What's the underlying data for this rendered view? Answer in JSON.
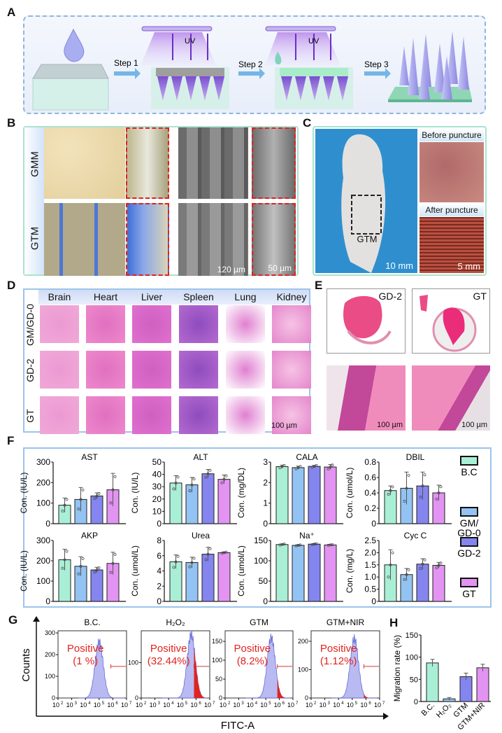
{
  "panels": {
    "a": "A",
    "b": "B",
    "c": "C",
    "d": "D",
    "e": "E",
    "f": "F",
    "g": "G",
    "h": "H"
  },
  "panel_a": {
    "step1": "Step 1",
    "step2": "Step 2",
    "step3": "Step 3",
    "uv": "UV"
  },
  "panel_b": {
    "rows": [
      "GMM",
      "GTM"
    ],
    "scale_sem": "120 µm",
    "scale_inset": "50 µm"
  },
  "panel_c": {
    "mouse_label": "GTM",
    "scale_mouse": "10 mm",
    "before": "Before puncture",
    "after": "After puncture",
    "scale_skin": "5 mm"
  },
  "panel_d": {
    "columns": [
      "Brain",
      "Heart",
      "Liver",
      "Spleen",
      "Lung",
      "Kidney"
    ],
    "rows": [
      "GM/GD-0",
      "GD-2",
      "GT"
    ],
    "scale": "100 µm"
  },
  "panel_e": {
    "labels": [
      "GD-2",
      "GT"
    ],
    "scale": "100 µm"
  },
  "colors": {
    "B.C": "#a9efd6",
    "GM/GD-0": "#93c3f2",
    "GD-2": "#8585ef",
    "GT": "#e393f2",
    "frame_blue": "#9cc4ea",
    "frame_green": "#a8e4cf",
    "positive_red": "#e0241f",
    "histogram_fill": "#b9baf2"
  },
  "legend": [
    "B.C",
    "GM/\nGD-0",
    "GD-2",
    "GT"
  ],
  "chart_data": [
    {
      "type": "bar",
      "panel": "F",
      "title": "AST",
      "ylabel": "Con. (IU/L)",
      "ylim": [
        0,
        300
      ],
      "yticks": [
        "0",
        "100",
        "200",
        "300"
      ],
      "categories": [
        "B.C",
        "GM/GD-0",
        "GD-2",
        "GT"
      ],
      "values": [
        90,
        118,
        135,
        165
      ],
      "errors": [
        35,
        58,
        15,
        80
      ]
    },
    {
      "type": "bar",
      "panel": "F",
      "title": "ALT",
      "ylabel": "Con. (IU/L)",
      "ylim": [
        0,
        50
      ],
      "yticks": [
        "0",
        "10",
        "20",
        "30",
        "40",
        "50"
      ],
      "categories": [
        "B.C",
        "GM/GD-0",
        "GD-2",
        "GT"
      ],
      "values": [
        33,
        31.5,
        40.5,
        36
      ],
      "errors": [
        6,
        6,
        3.5,
        3.5
      ]
    },
    {
      "type": "bar",
      "panel": "F",
      "title": "CALA",
      "ylabel": "Con. (mg/DL)",
      "ylim": [
        0,
        3
      ],
      "yticks": [
        "0",
        "1",
        "2",
        "3"
      ],
      "categories": [
        "B.C",
        "GM/GD-0",
        "GD-2",
        "GT"
      ],
      "values": [
        2.78,
        2.73,
        2.79,
        2.76
      ],
      "errors": [
        0.07,
        0.07,
        0.05,
        0.12
      ]
    },
    {
      "type": "bar",
      "panel": "F",
      "title": "DBIL",
      "ylabel": "Con. (umol/L)",
      "ylim": [
        0,
        0.8
      ],
      "yticks": [
        "0",
        "0.2",
        "0.4",
        "0.6",
        "0.8"
      ],
      "categories": [
        "B.C",
        "GM/GD-0",
        "GD-2",
        "GT"
      ],
      "values": [
        0.43,
        0.46,
        0.49,
        0.4
      ],
      "errors": [
        0.06,
        0.21,
        0.18,
        0.1
      ]
    },
    {
      "type": "bar",
      "panel": "F",
      "title": "AKP",
      "ylabel": "Con. (IU/L)",
      "ylim": [
        0,
        300
      ],
      "yticks": [
        "0",
        "100",
        "200",
        "300"
      ],
      "categories": [
        "B.C",
        "GM/GD-0",
        "GD-2",
        "GT"
      ],
      "values": [
        205,
        173,
        155,
        187
      ],
      "errors": [
        52,
        47,
        13,
        55
      ]
    },
    {
      "type": "bar",
      "panel": "F",
      "title": "Urea",
      "ylabel": "Con. (umol/L)",
      "ylim": [
        0,
        8
      ],
      "yticks": [
        "0",
        "2",
        "4",
        "6",
        "8"
      ],
      "categories": [
        "B.C",
        "GM/GD-0",
        "GD-2",
        "GT"
      ],
      "values": [
        5.2,
        5.1,
        6.2,
        6.4
      ],
      "errors": [
        0.9,
        0.7,
        0.9,
        0.1
      ]
    },
    {
      "type": "bar",
      "panel": "F",
      "title": "Na⁺",
      "ylabel": "Con. (umol/L)",
      "ylim": [
        0,
        150
      ],
      "yticks": [
        "0",
        "50",
        "100",
        "150"
      ],
      "categories": [
        "B.C",
        "GM/GD-0",
        "GD-2",
        "GT"
      ],
      "values": [
        140,
        138,
        141,
        139
      ],
      "errors": [
        1.5,
        1.5,
        1.5,
        1
      ]
    },
    {
      "type": "bar",
      "panel": "F",
      "title": "Cyc C",
      "ylabel": "Con. (mg/L)",
      "ylim": [
        0,
        2.5
      ],
      "yticks": [
        "0",
        "0.5",
        "1.0",
        "1.5",
        "2.0",
        "2.5"
      ],
      "categories": [
        "B.C",
        "GM/GD-0",
        "GD-2",
        "GT"
      ],
      "values": [
        1.5,
        1.1,
        1.53,
        1.48
      ],
      "errors": [
        0.62,
        0.25,
        0.22,
        0.12
      ]
    },
    {
      "type": "histogram",
      "panel": "G",
      "xlabel": "FITC-A",
      "ylabel": "Counts",
      "xscale": "log",
      "xticks": [
        "2",
        "3",
        "4",
        "5",
        "6",
        "7"
      ],
      "series": [
        {
          "name": "B.C.",
          "positive": "Positive\n(1 %)",
          "ylim": [
            0,
            310
          ],
          "yticks": [
            "0",
            "100",
            "200",
            "300"
          ],
          "peak_log10": 5.0,
          "peak_count": 260
        },
        {
          "name": "H₂O₂",
          "positive": "Positive\n(32.44%)",
          "ylim": [
            0,
            190
          ],
          "yticks": [
            "0",
            "100"
          ],
          "peak_log10": 5.65,
          "peak_count": 180
        },
        {
          "name": "GTM",
          "positive": "Positive\n(8.2%)",
          "ylim": [
            0,
            178
          ],
          "yticks": [
            "0",
            "50",
            "100",
            "150"
          ],
          "peak_log10": 5.4,
          "peak_count": 160
        },
        {
          "name": "GTM+NIR",
          "positive": "Positive\n(1.12%)",
          "ylim": [
            0,
            237
          ],
          "yticks": [
            "0",
            "100",
            "200"
          ],
          "peak_log10": 5.15,
          "peak_count": 210
        }
      ]
    },
    {
      "type": "bar",
      "panel": "H",
      "ylabel": "Migration rate (%)",
      "ylim": [
        0,
        150
      ],
      "yticks": [
        "0",
        "50",
        "100",
        "150"
      ],
      "categories": [
        "B.C.",
        "H₂O₂",
        "GTM",
        "GTM+NIR"
      ],
      "values": [
        87,
        6,
        56,
        76
      ],
      "errors": [
        8,
        3,
        8,
        8
      ]
    }
  ]
}
